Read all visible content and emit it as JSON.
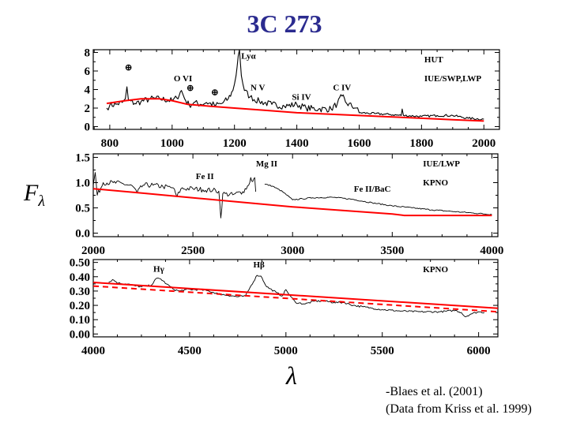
{
  "title": "3C 273",
  "ylabel": {
    "main": "F",
    "sub": "λ"
  },
  "xlabel": "λ",
  "credits": [
    "-Blaes et al. (2001)",
    "(Data from Kriss et al. 1999)"
  ],
  "colors": {
    "title": "#2b2b8f",
    "model": "#ff0000",
    "spectrum": "#000000"
  },
  "chart_data": [
    {
      "type": "line",
      "xlim": [
        747,
        2050
      ],
      "ylim": [
        -0.3,
        8.3
      ],
      "xticks": [
        800,
        1000,
        1200,
        1400,
        1600,
        1800,
        2000
      ],
      "yticks": [
        0,
        2,
        4,
        6,
        8
      ],
      "ytick_labels": [
        "0",
        "2",
        "4",
        "6",
        "8"
      ],
      "instrument_labels": [
        "HUT",
        "IUE/SWP,LWP"
      ],
      "annotations": [
        {
          "text": "⊕",
          "x": 860,
          "y": 6.1
        },
        {
          "text": "O VI",
          "x": 1035,
          "y": 4.9
        },
        {
          "text": "⊕",
          "x": 1058,
          "y": 4.3
        },
        {
          "text": "⊕",
          "x": 1137,
          "y": 3.4
        },
        {
          "text": "Lyα",
          "x": 1245,
          "y": 7.3
        },
        {
          "text": "N V",
          "x": 1275,
          "y": 3.9
        },
        {
          "text": "Si IV",
          "x": 1415,
          "y": 2.9
        },
        {
          "text": "C IV",
          "x": 1545,
          "y": 3.9
        }
      ],
      "series": [
        {
          "name": "spectrum",
          "style": "solid",
          "color": "#000000",
          "points": [
            [
              790,
              2.0
            ],
            [
              800,
              2.3
            ],
            [
              820,
              2.4
            ],
            [
              840,
              2.6
            ],
            [
              850,
              3.0
            ],
            [
              855,
              4.3
            ],
            [
              860,
              2.8
            ],
            [
              880,
              2.5
            ],
            [
              900,
              2.7
            ],
            [
              930,
              3.0
            ],
            [
              960,
              3.0
            ],
            [
              1000,
              2.8
            ],
            [
              1015,
              3.1
            ],
            [
              1030,
              3.9
            ],
            [
              1040,
              3.0
            ],
            [
              1055,
              2.3
            ],
            [
              1070,
              2.6
            ],
            [
              1090,
              2.4
            ],
            [
              1110,
              2.6
            ],
            [
              1140,
              2.3
            ],
            [
              1160,
              2.5
            ],
            [
              1180,
              3.0
            ],
            [
              1195,
              3.9
            ],
            [
              1205,
              5.5
            ],
            [
              1212,
              7.6
            ],
            [
              1216,
              8.3
            ],
            [
              1222,
              5.5
            ],
            [
              1232,
              3.9
            ],
            [
              1250,
              3.2
            ],
            [
              1280,
              2.7
            ],
            [
              1320,
              2.4
            ],
            [
              1360,
              2.2
            ],
            [
              1400,
              2.4
            ],
            [
              1430,
              2.0
            ],
            [
              1470,
              1.9
            ],
            [
              1510,
              1.9
            ],
            [
              1530,
              2.5
            ],
            [
              1545,
              3.3
            ],
            [
              1560,
              2.5
            ],
            [
              1590,
              2.0
            ],
            [
              1600,
              1.5
            ],
            [
              1650,
              1.4
            ],
            [
              1700,
              1.3
            ],
            [
              1735,
              1.2
            ],
            [
              1738,
              1.9
            ],
            [
              1742,
              1.2
            ],
            [
              1800,
              1.1
            ],
            [
              1850,
              1.2
            ],
            [
              1900,
              1.2
            ],
            [
              1950,
              0.9
            ],
            [
              2000,
              0.8
            ]
          ]
        },
        {
          "name": "model",
          "style": "solid",
          "color": "#ff0000",
          "points": [
            [
              790,
              2.5
            ],
            [
              850,
              2.8
            ],
            [
              900,
              3.0
            ],
            [
              960,
              3.0
            ],
            [
              1000,
              2.8
            ],
            [
              1050,
              2.4
            ],
            [
              1120,
              2.2
            ],
            [
              1200,
              2.0
            ],
            [
              1300,
              1.75
            ],
            [
              1400,
              1.5
            ],
            [
              1500,
              1.35
            ],
            [
              1600,
              1.2
            ],
            [
              1700,
              1.05
            ],
            [
              1800,
              0.9
            ],
            [
              1900,
              0.75
            ],
            [
              2000,
              0.6
            ]
          ]
        }
      ]
    },
    {
      "type": "line",
      "xlim": [
        2000,
        4030
      ],
      "ylim": [
        -0.07,
        1.57
      ],
      "xticks": [
        2000,
        2500,
        3000,
        3500,
        4000
      ],
      "yticks": [
        0,
        0.5,
        1.0,
        1.5
      ],
      "ytick_labels": [
        "0.0",
        "0.5",
        "1.0",
        "1.5"
      ],
      "instrument_labels": [
        "IUE/LWP",
        "KPNO"
      ],
      "annotations": [
        {
          "text": "Fe II",
          "x": 2560,
          "y": 1.07
        },
        {
          "text": "Mg II",
          "x": 2870,
          "y": 1.32
        },
        {
          "text": "Fe II/BaC",
          "x": 3400,
          "y": 0.82
        }
      ],
      "series": [
        {
          "name": "spectrum-uv",
          "style": "solid",
          "color": "#000000",
          "points": [
            [
              2000,
              0.95
            ],
            [
              2010,
              1.2
            ],
            [
              2020,
              0.75
            ],
            [
              2050,
              1.0
            ],
            [
              2100,
              1.0
            ],
            [
              2150,
              0.98
            ],
            [
              2200,
              0.92
            ],
            [
              2220,
              0.8
            ],
            [
              2250,
              0.95
            ],
            [
              2300,
              0.95
            ],
            [
              2350,
              0.92
            ],
            [
              2400,
              0.9
            ],
            [
              2420,
              0.72
            ],
            [
              2440,
              0.88
            ],
            [
              2500,
              0.88
            ],
            [
              2550,
              0.86
            ],
            [
              2600,
              0.85
            ],
            [
              2630,
              0.83
            ],
            [
              2640,
              0.3
            ],
            [
              2650,
              0.78
            ],
            [
              2700,
              0.76
            ],
            [
              2750,
              0.82
            ],
            [
              2780,
              0.95
            ],
            [
              2790,
              1.1
            ],
            [
              2800,
              1.02
            ],
            [
              2810,
              1.1
            ],
            [
              2815,
              0.82
            ]
          ]
        },
        {
          "name": "spectrum-optical",
          "style": "solid",
          "color": "#000000",
          "points": [
            [
              2860,
              0.97
            ],
            [
              2900,
              0.93
            ],
            [
              2950,
              0.82
            ],
            [
              3000,
              0.66
            ],
            [
              3050,
              0.68
            ],
            [
              3100,
              0.7
            ],
            [
              3200,
              0.71
            ],
            [
              3300,
              0.67
            ],
            [
              3400,
              0.6
            ],
            [
              3500,
              0.54
            ],
            [
              3600,
              0.5
            ],
            [
              3700,
              0.46
            ],
            [
              3800,
              0.43
            ],
            [
              3900,
              0.4
            ],
            [
              4000,
              0.37
            ]
          ]
        },
        {
          "name": "model",
          "style": "solid",
          "color": "#ff0000",
          "points": [
            [
              2000,
              0.88
            ],
            [
              2250,
              0.79
            ],
            [
              2500,
              0.7
            ],
            [
              2750,
              0.61
            ],
            [
              3000,
              0.52
            ],
            [
              3250,
              0.45
            ],
            [
              3500,
              0.38
            ],
            [
              3560,
              0.35
            ],
            [
              3700,
              0.35
            ],
            [
              4000,
              0.35
            ]
          ]
        }
      ]
    },
    {
      "type": "line",
      "xlim": [
        4000,
        6100
      ],
      "ylim": [
        -0.02,
        0.52
      ],
      "xticks": [
        4000,
        4500,
        5000,
        5500,
        6000
      ],
      "yticks": [
        0,
        0.1,
        0.2,
        0.3,
        0.4,
        0.5
      ],
      "ytick_labels": [
        "0.00",
        "0.10",
        "0.20",
        "0.30",
        "0.40",
        "0.50"
      ],
      "instrument_labels": [
        "KPNO"
      ],
      "annotations": [
        {
          "text": "Hγ",
          "x": 4340,
          "y": 0.435
        },
        {
          "text": "Hβ",
          "x": 4860,
          "y": 0.465
        }
      ],
      "series": [
        {
          "name": "spectrum",
          "style": "solid",
          "color": "#000000",
          "points": [
            [
              4080,
              0.36
            ],
            [
              4100,
              0.38
            ],
            [
              4130,
              0.355
            ],
            [
              4180,
              0.35
            ],
            [
              4220,
              0.335
            ],
            [
              4250,
              0.33
            ],
            [
              4300,
              0.34
            ],
            [
              4330,
              0.39
            ],
            [
              4350,
              0.385
            ],
            [
              4380,
              0.35
            ],
            [
              4420,
              0.31
            ],
            [
              4450,
              0.3
            ],
            [
              4480,
              0.31
            ],
            [
              4550,
              0.31
            ],
            [
              4600,
              0.3
            ],
            [
              4650,
              0.28
            ],
            [
              4700,
              0.27
            ],
            [
              4750,
              0.26
            ],
            [
              4790,
              0.265
            ],
            [
              4820,
              0.34
            ],
            [
              4850,
              0.41
            ],
            [
              4870,
              0.405
            ],
            [
              4900,
              0.33
            ],
            [
              4950,
              0.29
            ],
            [
              4980,
              0.265
            ],
            [
              5000,
              0.31
            ],
            [
              5020,
              0.27
            ],
            [
              5050,
              0.22
            ],
            [
              5100,
              0.21
            ],
            [
              5150,
              0.23
            ],
            [
              5200,
              0.23
            ],
            [
              5250,
              0.22
            ],
            [
              5300,
              0.22
            ],
            [
              5350,
              0.2
            ],
            [
              5400,
              0.19
            ],
            [
              5450,
              0.18
            ],
            [
              5500,
              0.17
            ],
            [
              5600,
              0.16
            ],
            [
              5700,
              0.155
            ],
            [
              5800,
              0.155
            ],
            [
              5880,
              0.165
            ],
            [
              5910,
              0.15
            ],
            [
              5930,
              0.12
            ],
            [
              5960,
              0.14
            ],
            [
              6000,
              0.155
            ],
            [
              6030,
              0.15
            ]
          ]
        },
        {
          "name": "model-solid",
          "style": "solid",
          "color": "#ff0000",
          "points": [
            [
              4000,
              0.36
            ],
            [
              6100,
              0.18
            ]
          ]
        },
        {
          "name": "model-dashed",
          "style": "dashed",
          "color": "#ff0000",
          "points": [
            [
              4000,
              0.335
            ],
            [
              6100,
              0.155
            ]
          ]
        }
      ]
    }
  ]
}
